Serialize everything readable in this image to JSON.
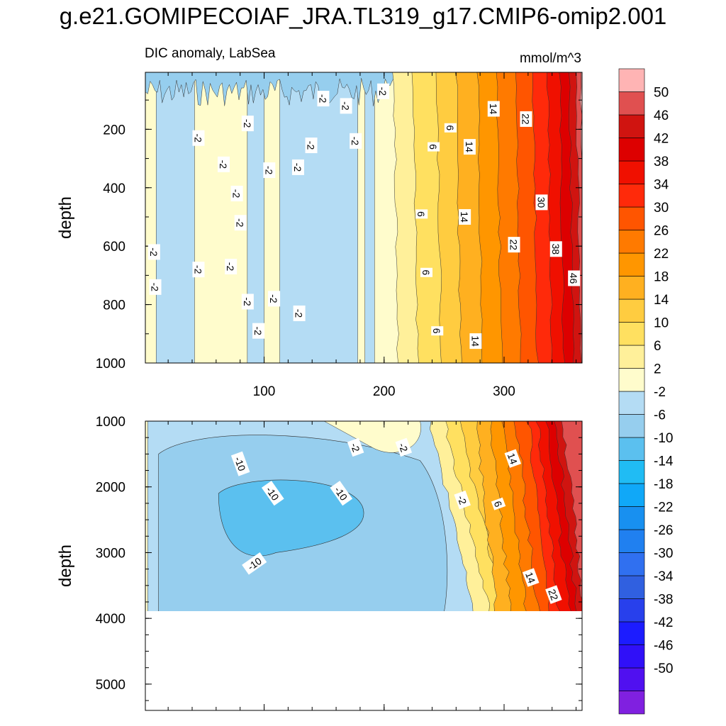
{
  "title": "g.e21.GOMIPECOIAF_JRA.TL319_g17.CMIP6-omip2.001",
  "chart_data": [
    {
      "type": "heatmap",
      "panel": "upper",
      "left_title": "DIC anomaly, LabSea",
      "right_title": "mmol/m^3",
      "ylabel": "depth",
      "xlabel": "",
      "xlim": [
        1,
        365
      ],
      "ylim": [
        1000,
        5
      ],
      "x_ticks": [
        100,
        200,
        300
      ],
      "y_ticks": [
        200,
        400,
        600,
        800,
        1000
      ],
      "contour_labels": [
        {
          "text": "-2",
          "x": 8,
          "y": 620
        },
        {
          "text": "-2",
          "x": 9,
          "y": 740
        },
        {
          "text": "-2",
          "x": 45,
          "y": 230
        },
        {
          "text": "-2",
          "x": 45,
          "y": 680
        },
        {
          "text": "-2",
          "x": 66,
          "y": 320
        },
        {
          "text": "-2",
          "x": 72,
          "y": 670
        },
        {
          "text": "-2",
          "x": 77,
          "y": 420
        },
        {
          "text": "-2",
          "x": 80,
          "y": 520
        },
        {
          "text": "-2",
          "x": 86,
          "y": 180
        },
        {
          "text": "-2",
          "x": 86,
          "y": 790
        },
        {
          "text": "-2",
          "x": 95,
          "y": 890
        },
        {
          "text": "-2",
          "x": 104,
          "y": 340
        },
        {
          "text": "-2",
          "x": 108,
          "y": 780
        },
        {
          "text": "-2",
          "x": 128,
          "y": 330
        },
        {
          "text": "-2",
          "x": 129,
          "y": 830
        },
        {
          "text": "-2",
          "x": 139,
          "y": 255
        },
        {
          "text": "-2",
          "x": 149,
          "y": 95
        },
        {
          "text": "-2",
          "x": 168,
          "y": 120
        },
        {
          "text": "-2",
          "x": 176,
          "y": 240
        },
        {
          "text": "-2",
          "x": 199,
          "y": 70
        },
        {
          "text": "6",
          "x": 231,
          "y": 490
        },
        {
          "text": "6",
          "x": 235,
          "y": 690
        },
        {
          "text": "6",
          "x": 241,
          "y": 260
        },
        {
          "text": "6",
          "x": 244,
          "y": 890
        },
        {
          "text": "6",
          "x": 255,
          "y": 195
        },
        {
          "text": "14",
          "x": 267,
          "y": 500
        },
        {
          "text": "14",
          "x": 271,
          "y": 260
        },
        {
          "text": "14",
          "x": 276,
          "y": 925
        },
        {
          "text": "14",
          "x": 291,
          "y": 130
        },
        {
          "text": "22",
          "x": 308,
          "y": 595
        },
        {
          "text": "22",
          "x": 318,
          "y": 165
        },
        {
          "text": "30",
          "x": 331,
          "y": 450
        },
        {
          "text": "38",
          "x": 343,
          "y": 610
        },
        {
          "text": "46",
          "x": 358,
          "y": 710
        }
      ]
    },
    {
      "type": "heatmap",
      "panel": "lower",
      "ylabel": "depth",
      "xlabel": "",
      "xlim": [
        1,
        365
      ],
      "ylim": [
        5400,
        1000
      ],
      "data_bottom_depth": 3900,
      "y_ticks": [
        1000,
        2000,
        3000,
        4000,
        5000
      ],
      "contour_labels": [
        {
          "text": "-10",
          "x": 80,
          "y": 1650
        },
        {
          "text": "-10",
          "x": 107,
          "y": 2100
        },
        {
          "text": "-10",
          "x": 164,
          "y": 2100
        },
        {
          "text": "-10",
          "x": 92,
          "y": 3170
        },
        {
          "text": "-2",
          "x": 176,
          "y": 1400
        },
        {
          "text": "-2",
          "x": 216,
          "y": 1400
        },
        {
          "text": "-2",
          "x": 265,
          "y": 2200
        },
        {
          "text": "6",
          "x": 295,
          "y": 2260
        },
        {
          "text": "14",
          "x": 307,
          "y": 1570
        },
        {
          "text": "14",
          "x": 322,
          "y": 3380
        },
        {
          "text": "22",
          "x": 341,
          "y": 3640
        }
      ]
    }
  ],
  "colorbar": {
    "labels": [
      "50",
      "46",
      "42",
      "38",
      "34",
      "30",
      "26",
      "22",
      "18",
      "14",
      "10",
      "6",
      "2",
      "-2",
      "-6",
      "-10",
      "-14",
      "-18",
      "-22",
      "-26",
      "-30",
      "-34",
      "-38",
      "-42",
      "-46",
      "-50"
    ],
    "colors": [
      "#8020e0",
      "#5010f0",
      "#3010f8",
      "#1c1cff",
      "#2840ec",
      "#3060e0",
      "#3070f0",
      "#2080f0",
      "#1890f0",
      "#10a8f8",
      "#20bcf4",
      "#5bc0ef",
      "#96ceee",
      "#b4dcf4",
      "#fffccc",
      "#fff09a",
      "#ffe060",
      "#ffcc40",
      "#ffb020",
      "#ff9600",
      "#ff7a00",
      "#ff5500",
      "#ff2a0a",
      "#f01000",
      "#dd0000",
      "#d01410",
      "#e05050",
      "#ffb4b4"
    ]
  }
}
